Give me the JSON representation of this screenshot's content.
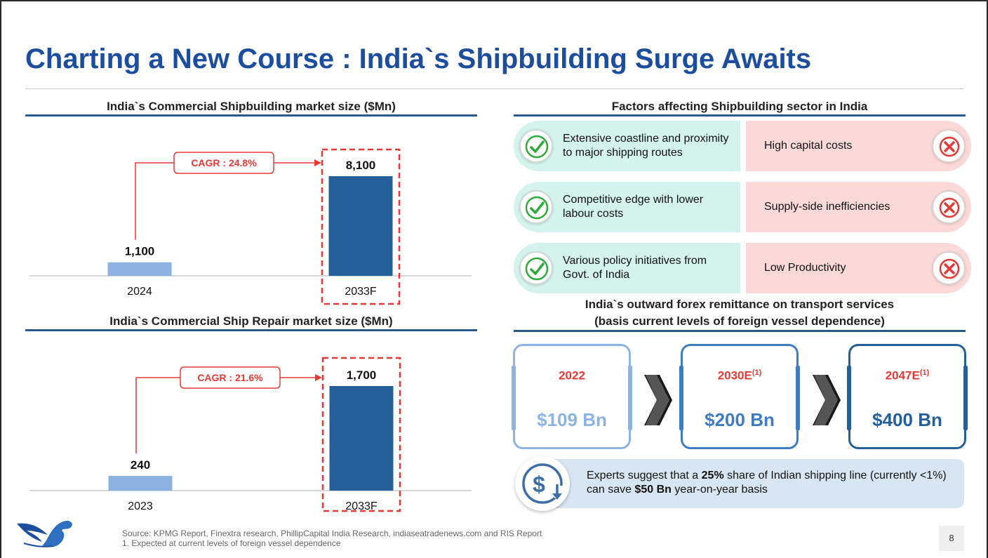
{
  "title": "Charting a New Course : India`s Shipbuilding Surge Awaits",
  "colors": {
    "title": "#1d4e9e",
    "bar_light": "#8db3e2",
    "bar_dark": "#245f99",
    "accent_red": "#e53935",
    "rule": "#2a5a8c",
    "positive_bg": "#d3f3ec",
    "negative_bg": "#fbd9d9"
  },
  "chart_data": [
    {
      "type": "bar",
      "title": "India`s Commercial Shipbuilding market size ($Mn)",
      "categories": [
        "2024",
        "2033F"
      ],
      "values": [
        1100,
        8100
      ],
      "value_labels": [
        "1,100",
        "8,100"
      ],
      "annotation": "CAGR : 24.8%",
      "highlight_category": "2033F",
      "ylim": [
        0,
        8100
      ]
    },
    {
      "type": "bar",
      "title": "India`s Commercial Ship Repair market size ($Mn)",
      "categories": [
        "2023",
        "2033F"
      ],
      "values": [
        240,
        1700
      ],
      "value_labels": [
        "240",
        "1,700"
      ],
      "annotation": "CAGR : 21.6%",
      "highlight_category": "2033F",
      "ylim": [
        0,
        1700
      ]
    }
  ],
  "factors": {
    "title": "Factors affecting Shipbuilding sector in India",
    "positive_icon": "check-icon",
    "negative_icon": "cross-icon",
    "rows": [
      {
        "positive": "Extensive coastline and proximity to major shipping routes",
        "negative": "High capital costs"
      },
      {
        "positive": "Competitive edge with lower labour costs",
        "negative": "Supply-side inefficiencies"
      },
      {
        "positive": "Various policy initiatives from Govt. of India",
        "negative": "Low Productivity"
      }
    ]
  },
  "forex": {
    "title_line1": "India`s outward forex remittance on transport services",
    "title_line2": "(basis current levels of foreign vessel dependence)",
    "cards": [
      {
        "year": "2022",
        "note": "",
        "value": "$109 Bn",
        "color": "#8db3e2"
      },
      {
        "year": "2030E",
        "note": "(1)",
        "value": "$200 Bn",
        "color": "#3d7cc0"
      },
      {
        "year": "2047E",
        "note": "(1)",
        "value": "$400 Bn",
        "color": "#245f99"
      }
    ]
  },
  "expert": {
    "icon": "dollar-down-icon",
    "t1": "Experts suggest that a ",
    "b1": "25%",
    "t2": " share of Indian shipping line (currently <1%) can save ",
    "b2": "$50 Bn",
    "t3": " year-on-year basis"
  },
  "footer": {
    "source": "Source: KPMG Report, Finextra research, PhillipCapital India Research, indiaseatradenews.com and RIS Report",
    "note": "1. Expected at current levels of foreign vessel dependence",
    "page": "8",
    "logo": "swan-logo"
  }
}
